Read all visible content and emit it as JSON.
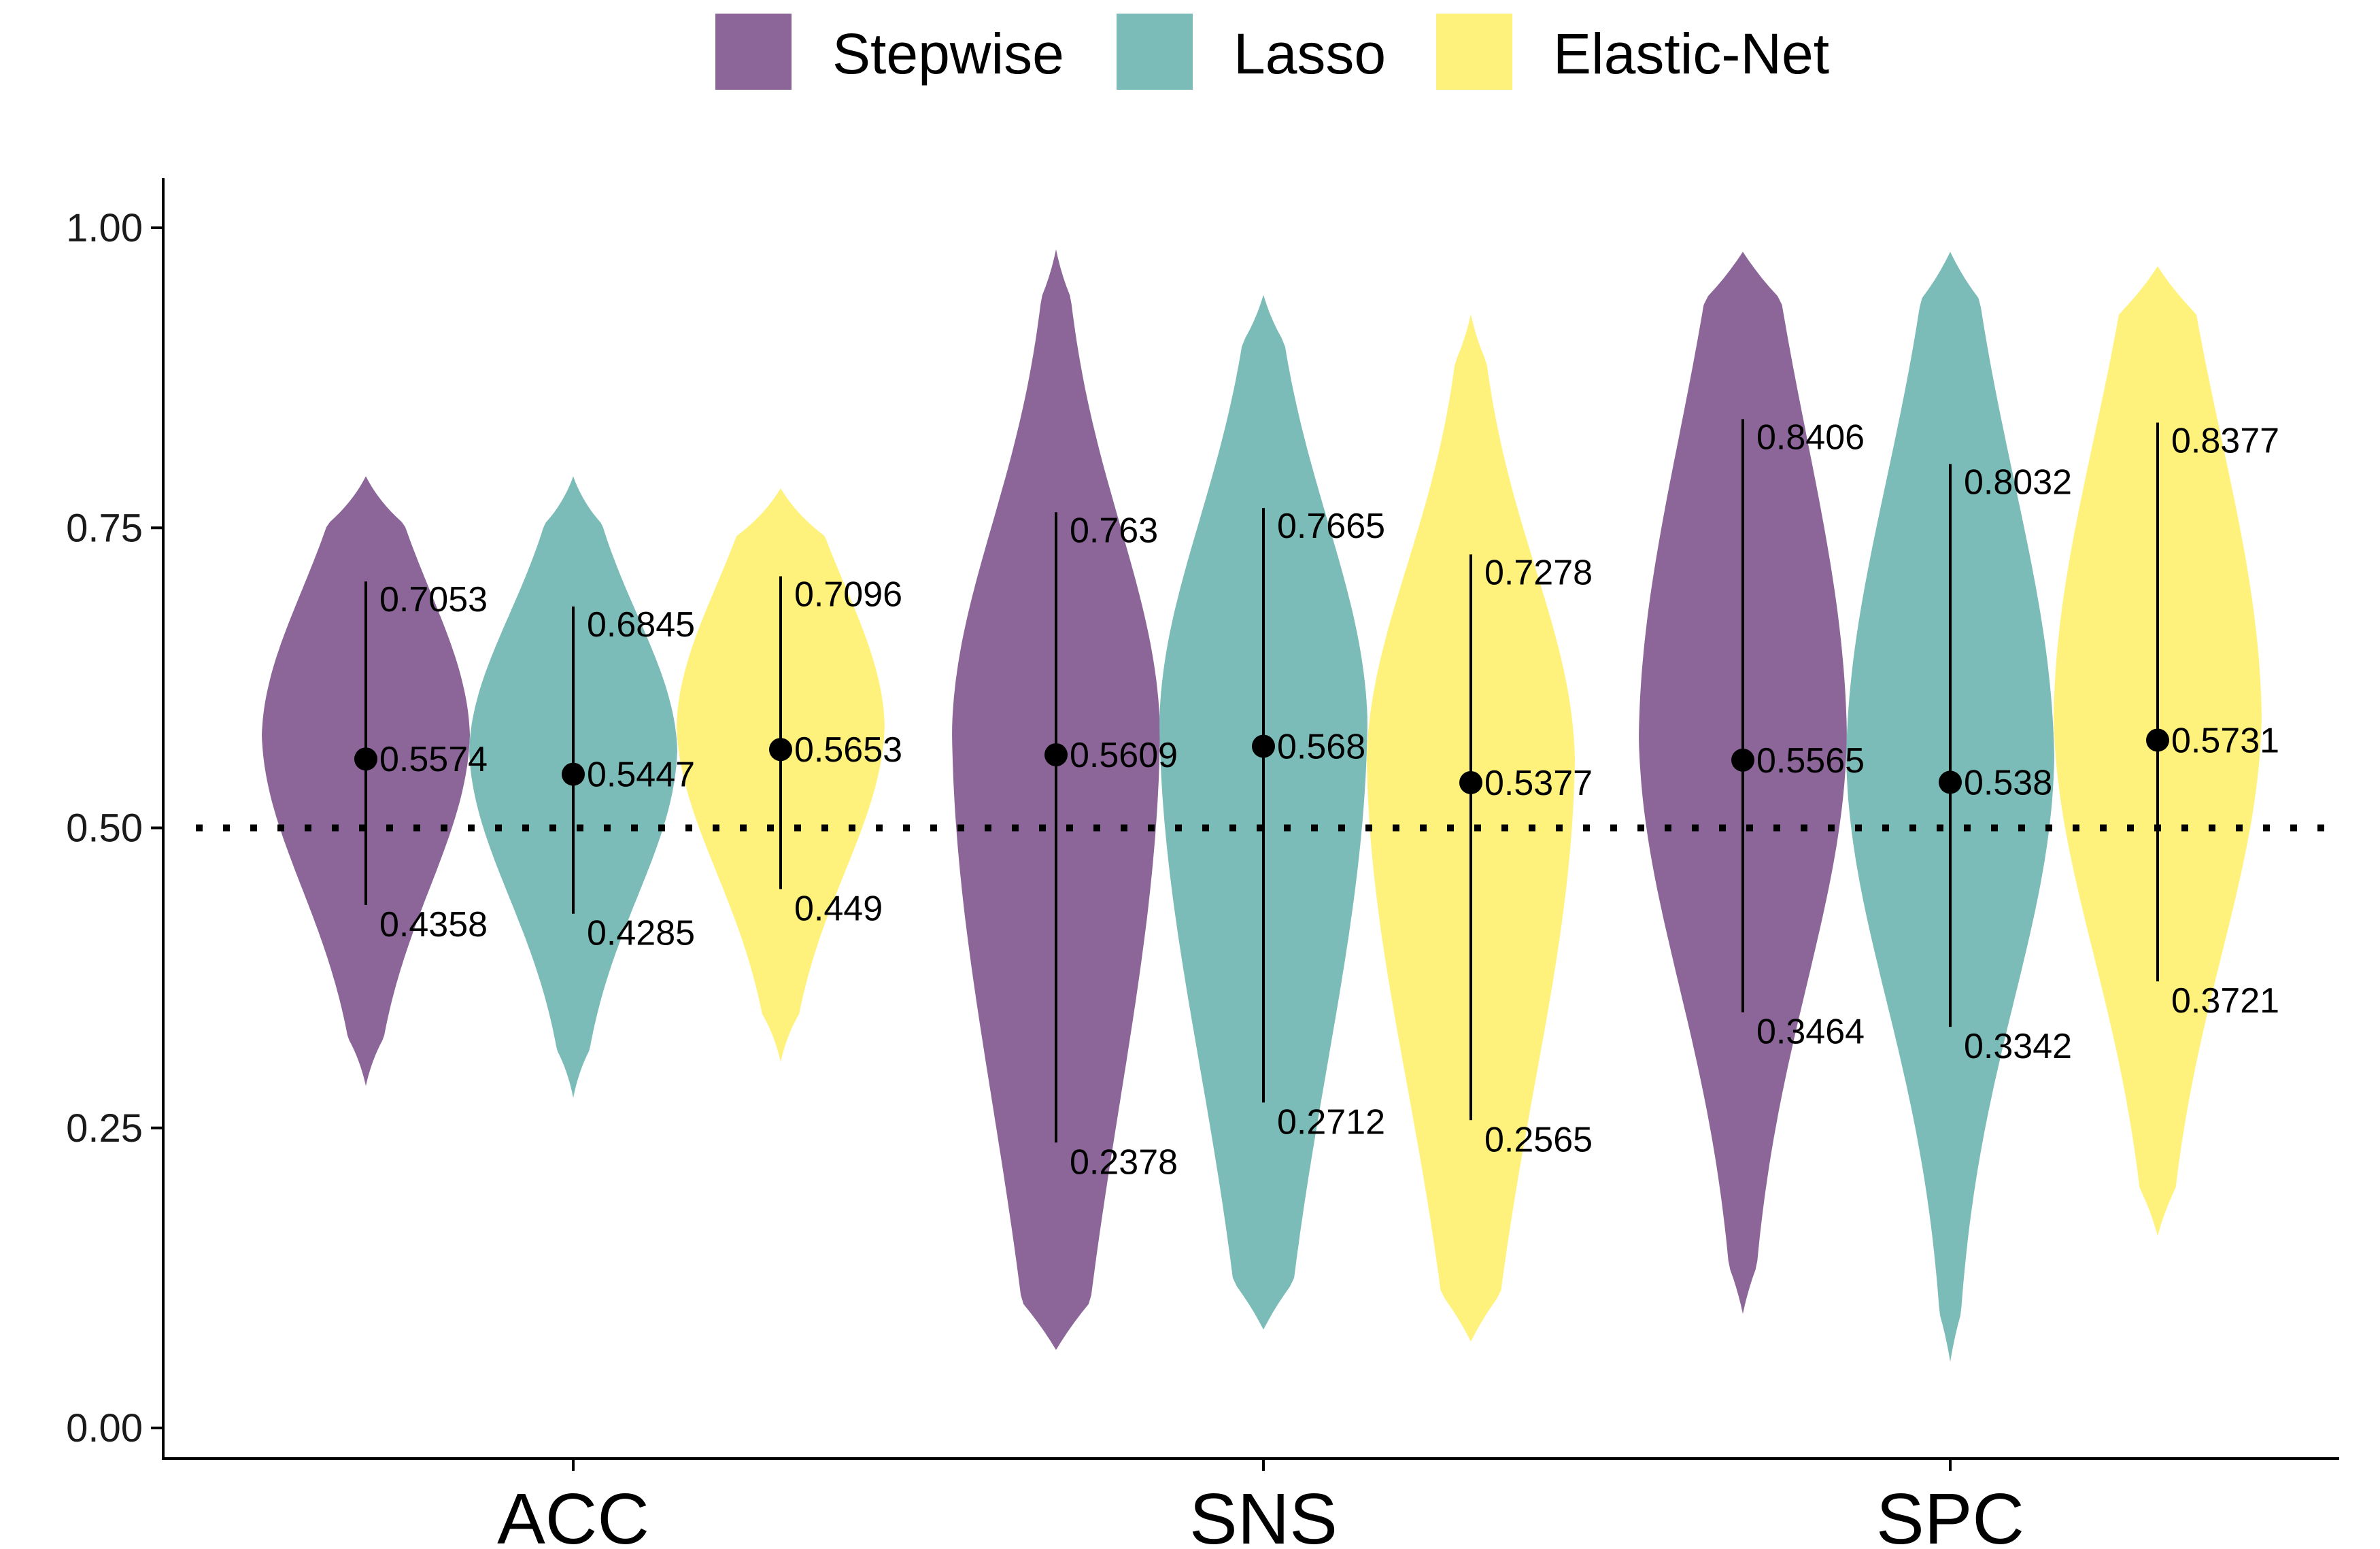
{
  "chart_data": {
    "type": "violin",
    "title": "",
    "xlabel": "",
    "ylabel": "",
    "ylim": [
      0,
      1.03
    ],
    "yticks": [
      "0.00",
      "0.25",
      "0.50",
      "0.75",
      "1.00"
    ],
    "categories": [
      "ACC",
      "SNS",
      "SPC"
    ],
    "reference_line": 0.5,
    "legend_position": "top",
    "grid": false,
    "series": [
      {
        "name": "Stepwise",
        "color": "#8C6699",
        "groups": [
          {
            "min": 0.285,
            "max": 0.793,
            "low": 0.4358,
            "mid": 0.5574,
            "high": 0.7053,
            "low_label": "0.4358",
            "mid_label": "0.5574",
            "high_label": "0.7053"
          },
          {
            "min": 0.065,
            "max": 0.982,
            "low": 0.2378,
            "mid": 0.5609,
            "high": 0.763,
            "low_label": "0.2378",
            "mid_label": "0.5609",
            "high_label": "0.763"
          },
          {
            "min": 0.095,
            "max": 0.98,
            "low": 0.3464,
            "mid": 0.5565,
            "high": 0.8406,
            "low_label": "0.3464",
            "mid_label": "0.5565",
            "high_label": "0.8406"
          }
        ]
      },
      {
        "name": "Lasso",
        "color": "#7BBCB8",
        "groups": [
          {
            "min": 0.275,
            "max": 0.793,
            "low": 0.4285,
            "mid": 0.5447,
            "high": 0.6845,
            "low_label": "0.4285",
            "mid_label": "0.5447",
            "high_label": "0.6845"
          },
          {
            "min": 0.082,
            "max": 0.944,
            "low": 0.2712,
            "mid": 0.568,
            "high": 0.7665,
            "low_label": "0.2712",
            "mid_label": "0.568",
            "high_label": "0.7665"
          },
          {
            "min": 0.055,
            "max": 0.98,
            "low": 0.3342,
            "mid": 0.538,
            "high": 0.8032,
            "low_label": "0.3342",
            "mid_label": "0.538",
            "high_label": "0.8032"
          }
        ]
      },
      {
        "name": "Elastic-Net",
        "color": "#FFF27C",
        "groups": [
          {
            "min": 0.305,
            "max": 0.783,
            "low": 0.449,
            "mid": 0.5653,
            "high": 0.7096,
            "low_label": "0.449",
            "mid_label": "0.5653",
            "high_label": "0.7096"
          },
          {
            "min": 0.072,
            "max": 0.928,
            "low": 0.2565,
            "mid": 0.5377,
            "high": 0.7278,
            "low_label": "0.2565",
            "mid_label": "0.5377",
            "high_label": "0.7278"
          },
          {
            "min": 0.16,
            "max": 0.968,
            "low": 0.3721,
            "mid": 0.5731,
            "high": 0.8377,
            "low_label": "0.3721",
            "mid_label": "0.5731",
            "high_label": "0.8377"
          }
        ]
      }
    ]
  }
}
